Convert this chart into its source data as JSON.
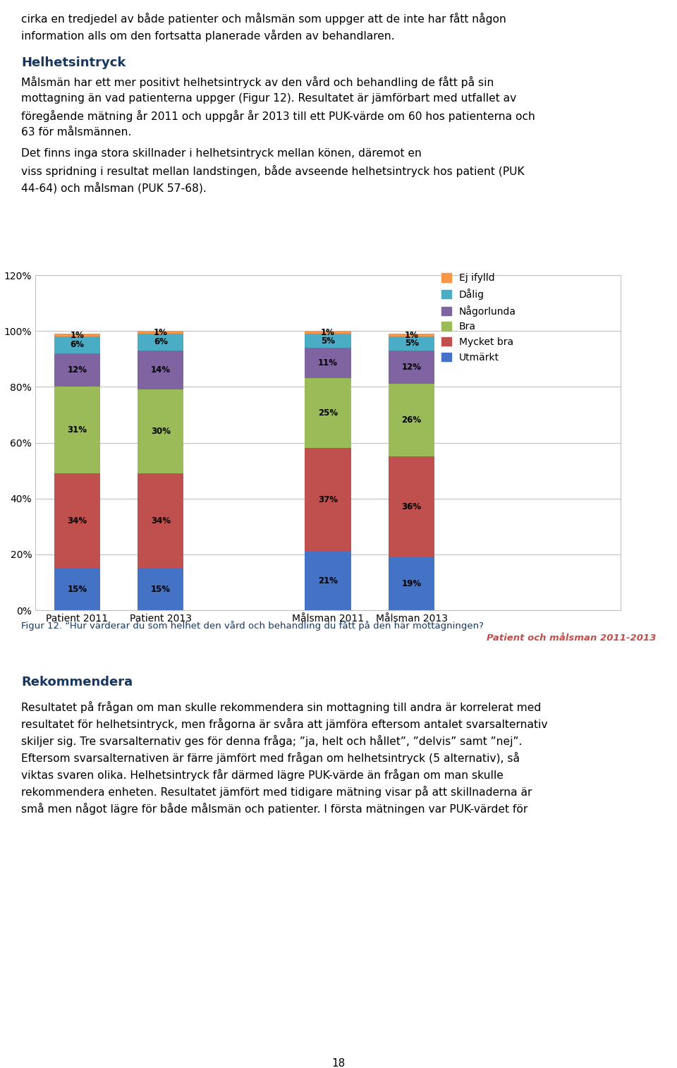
{
  "categories": [
    "Patient 2011",
    "Patient 2013",
    "",
    "Målsman 2011",
    "Målsman 2013"
  ],
  "series": {
    "Utmärkt": [
      15,
      15,
      0,
      21,
      19
    ],
    "Mycket bra": [
      34,
      34,
      0,
      37,
      36
    ],
    "Bra": [
      31,
      30,
      0,
      25,
      26
    ],
    "Någorlunda": [
      12,
      14,
      0,
      11,
      12
    ],
    "Dålig": [
      6,
      6,
      0,
      5,
      5
    ],
    "Ej ifylld": [
      1,
      1,
      0,
      1,
      1
    ]
  },
  "colors": {
    "Utmärkt": "#4472C4",
    "Mycket bra": "#C0504D",
    "Bra": "#9BBB59",
    "Någorlunda": "#8064A2",
    "Dålig": "#4BACC6",
    "Ej ifylld": "#F79646"
  },
  "legend_order": [
    "Ej ifylld",
    "Dålig",
    "Någorlunda",
    "Bra",
    "Mycket bra",
    "Utmärkt"
  ],
  "ylim": [
    0,
    120
  ],
  "yticks": [
    0,
    20,
    40,
    60,
    80,
    100,
    120
  ],
  "yticklabels": [
    "0%",
    "20%",
    "40%",
    "60%",
    "80%",
    "100%",
    "120%"
  ],
  "figsize": [
    9.6,
    15.14
  ],
  "dpi": 100,
  "chart_border_color": "#C0C0C0",
  "grid_color": "#C0C0C0",
  "text_color": "#000000",
  "heading_color": "#17375E",
  "caption_color": "#17375E",
  "caption2_color": "#C0504D",
  "page_number": "18"
}
